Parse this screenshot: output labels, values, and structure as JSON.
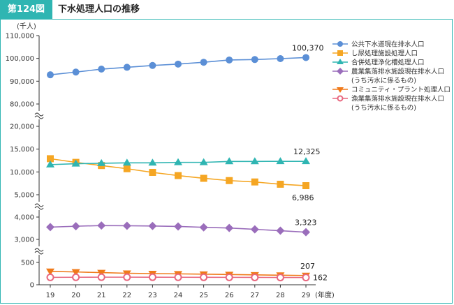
{
  "header": {
    "figure_no": "第124図",
    "title": "下水処理人口の推移"
  },
  "chart_data": {
    "type": "line",
    "y_unit": "(千人)",
    "x_unit": "(年度)",
    "categories": [
      "19",
      "20",
      "21",
      "22",
      "23",
      "24",
      "25",
      "26",
      "27",
      "28",
      "29"
    ],
    "y_ticks": [
      "110,000",
      "100,000",
      "90,000",
      "80,000",
      "20,000",
      "15,000",
      "10,000",
      "5,000",
      "4,000",
      "3,000",
      "500",
      "0"
    ],
    "y_axis_breaks": true,
    "grid": false,
    "legend_position": "top-right",
    "series": [
      {
        "name": "公共下水道現在排水人口",
        "color": "#5b8fd6",
        "marker": "circle",
        "values": [
          92800,
          94000,
          95300,
          96100,
          96900,
          97500,
          98300,
          99300,
          99500,
          99900,
          100370
        ],
        "end_label": "100,370"
      },
      {
        "name": "し尿処理施設処理人口",
        "color": "#f5a623",
        "marker": "square",
        "values": [
          12900,
          12100,
          11400,
          10700,
          9900,
          9200,
          8600,
          8100,
          7800,
          7300,
          6986
        ],
        "end_label": "6,986"
      },
      {
        "name": "合併処理浄化槽処理人口",
        "color": "#2fb5b2",
        "marker": "triangle-up",
        "values": [
          11600,
          11800,
          11900,
          12000,
          12000,
          12100,
          12100,
          12300,
          12300,
          12325,
          12325
        ],
        "end_label": "12,325"
      },
      {
        "name": "農業集落排水施設現在排水人口",
        "name_line2": "(うち汚水に係るもの)",
        "color": "#9a6dbb",
        "marker": "diamond",
        "values": [
          3550,
          3590,
          3620,
          3610,
          3600,
          3580,
          3540,
          3510,
          3450,
          3390,
          3323
        ],
        "end_label": "3,323"
      },
      {
        "name": "コミュニティ・プラント処理人口",
        "color": "#f07a1a",
        "marker": "triangle-down",
        "values": [
          300,
          287,
          272,
          258,
          250,
          244,
          237,
          229,
          221,
          214,
          207
        ],
        "end_label": "207"
      },
      {
        "name": "漁業集落排水施設現在排水人口",
        "name_line2": "(うち汚水に係るもの)",
        "color": "#e8677f",
        "marker": "circle-open",
        "values": [
          166,
          168,
          170,
          170,
          169,
          168,
          167,
          166,
          165,
          163,
          162
        ],
        "end_label": "162"
      }
    ]
  }
}
